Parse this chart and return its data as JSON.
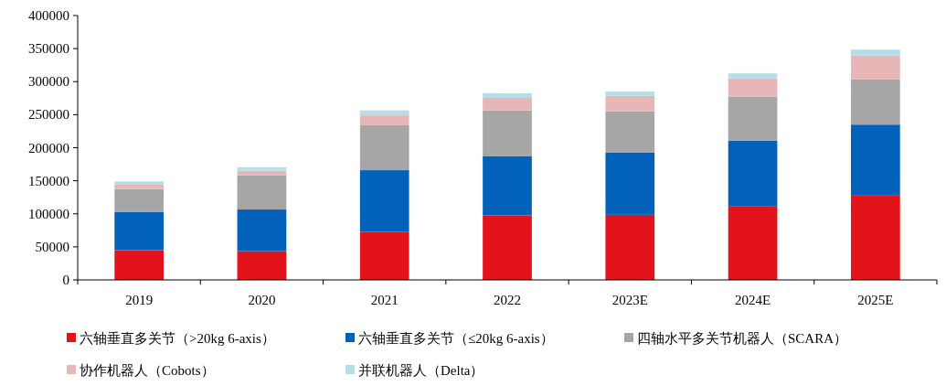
{
  "chart_data": {
    "type": "bar",
    "stacked": true,
    "categories": [
      "2019",
      "2020",
      "2021",
      "2022",
      "2023E",
      "2024E",
      "2025E"
    ],
    "ylim": [
      0,
      400000
    ],
    "yticks": [
      0,
      50000,
      100000,
      150000,
      200000,
      250000,
      300000,
      350000,
      400000
    ],
    "grid": false,
    "legend": "bottom",
    "series": [
      {
        "name": "六轴垂直多关节（>20kg 6-axis）",
        "color": "#e3131b",
        "values": [
          45000,
          43500,
          72500,
          97500,
          98500,
          111000,
          128500
        ]
      },
      {
        "name": "六轴垂直多关节（≤20kg 6-axis）",
        "color": "#0262ba",
        "values": [
          58000,
          63000,
          93500,
          90000,
          94500,
          99500,
          106500
        ]
      },
      {
        "name": "四轴水平多关节机器人（SCARA）",
        "color": "#a6a6a6",
        "values": [
          34500,
          51500,
          68000,
          69000,
          62000,
          66500,
          68500
        ]
      },
      {
        "name": "协作机器人（Cobots）",
        "color": "#e6b7b6",
        "values": [
          6500,
          7000,
          15000,
          19000,
          23500,
          28000,
          36000
        ]
      },
      {
        "name": "并联机器人（Delta）",
        "color": "#b7dde8",
        "values": [
          5000,
          5500,
          7500,
          7000,
          6500,
          7500,
          9000
        ]
      }
    ]
  }
}
